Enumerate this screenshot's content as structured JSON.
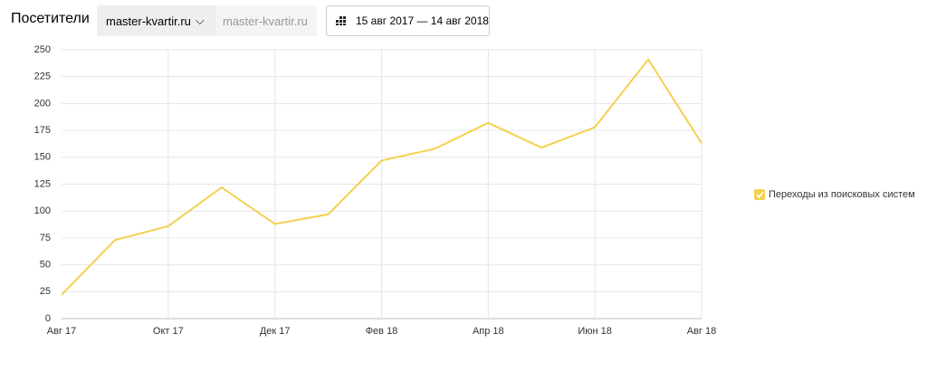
{
  "header": {
    "title": "Посетители",
    "site_selector": "master-kvartir.ru",
    "site_secondary": "master-kvartir.ru",
    "date_range": "15 авг 2017 — 14 авг 2018"
  },
  "chart_data": {
    "type": "line",
    "categories": [
      "Авг 17",
      null,
      "Окт 17",
      null,
      "Дек 17",
      null,
      "Фев 18",
      null,
      "Апр 18",
      null,
      "Июн 18",
      null,
      "Авг 18"
    ],
    "series": [
      {
        "name": "Переходы из поисковых систем",
        "color": "#f5d04f",
        "values": [
          22,
          73,
          86,
          122,
          88,
          97,
          147,
          158,
          182,
          159,
          178,
          241,
          163
        ]
      }
    ],
    "ylim": [
      0,
      250
    ],
    "yticks": [
      0,
      25,
      50,
      75,
      100,
      125,
      150,
      175,
      200,
      225,
      250
    ],
    "grid": true,
    "legend": "right"
  }
}
